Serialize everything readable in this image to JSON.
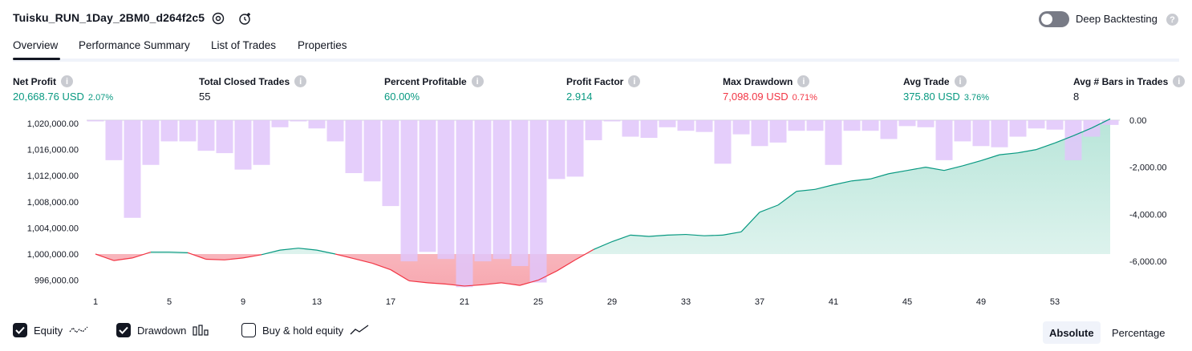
{
  "header": {
    "title": "Tuisku_RUN_1Day_2BM0_d264f2c5",
    "deep_backtesting_label": "Deep Backtesting",
    "deep_backtesting_enabled": false
  },
  "tabs": [
    {
      "label": "Overview",
      "active": true
    },
    {
      "label": "Performance Summary",
      "active": false
    },
    {
      "label": "List of Trades",
      "active": false
    },
    {
      "label": "Properties",
      "active": false
    }
  ],
  "metrics": [
    {
      "label": "Net Profit",
      "value": "20,668.76 USD",
      "pct": "2.07%",
      "color": "#089981"
    },
    {
      "label": "Total Closed Trades",
      "value": "55",
      "pct": "",
      "color": "#131722"
    },
    {
      "label": "Percent Profitable",
      "value": "60.00%",
      "pct": "",
      "color": "#089981"
    },
    {
      "label": "Profit Factor",
      "value": "2.914",
      "pct": "",
      "color": "#089981"
    },
    {
      "label": "Max Drawdown",
      "value": "7,098.09 USD",
      "pct": "0.71%",
      "color": "#f23645"
    },
    {
      "label": "Avg Trade",
      "value": "375.80 USD",
      "pct": "3.76%",
      "color": "#089981"
    },
    {
      "label": "Avg # Bars in Trades",
      "value": "8",
      "pct": "",
      "color": "#131722"
    }
  ],
  "colors": {
    "equity_line_up": "#089981",
    "equity_line_down": "#f23645",
    "drawdown_bar": "#e1c6fa",
    "equity_fill_up": "#cdeee6",
    "equity_fill_down": "#fbd5d8"
  },
  "chart_data": {
    "type": "bar",
    "x": [
      1,
      2,
      3,
      4,
      5,
      6,
      7,
      8,
      9,
      10,
      11,
      12,
      13,
      14,
      15,
      16,
      17,
      18,
      19,
      20,
      21,
      22,
      23,
      24,
      25,
      26,
      27,
      28,
      29,
      30,
      31,
      32,
      33,
      34,
      35,
      36,
      37,
      38,
      39,
      40,
      41,
      42,
      43,
      44,
      45,
      46,
      47,
      48,
      49,
      50,
      51,
      52,
      53,
      54,
      55,
      56
    ],
    "x_ticks": [
      "1",
      "5",
      "9",
      "13",
      "17",
      "21",
      "25",
      "29",
      "33",
      "37",
      "41",
      "45",
      "49",
      "53"
    ],
    "left_axis_ticks": [
      "1,020,000.00",
      "1,016,000.00",
      "1,012,000.00",
      "1,008,000.00",
      "1,004,000.00",
      "1,000,000.00",
      "996,000.00"
    ],
    "right_axis_ticks": [
      "0.00",
      "-2,000.00",
      "-4,000.00",
      "-6,000.00"
    ],
    "left_ylim": [
      994000,
      1021000
    ],
    "right_ylim": [
      -6500,
      0
    ],
    "series": [
      {
        "name": "Equity",
        "axis": "left",
        "values": [
          1000000,
          999000,
          999400,
          1000300,
          1000300,
          1000200,
          999200,
          999100,
          999400,
          999900,
          1000600,
          1000900,
          1000600,
          1000000,
          999300,
          998600,
          997600,
          995900,
          995600,
          995400,
          995100,
          995300,
          995600,
          995200,
          996000,
          997400,
          999100,
          1000700,
          1001900,
          1002900,
          1002700,
          1002900,
          1003000,
          1002800,
          1002900,
          1003400,
          1006400,
          1007500,
          1009600,
          1009900,
          1010600,
          1011200,
          1011500,
          1012300,
          1012800,
          1013300,
          1012800,
          1013500,
          1014300,
          1015200,
          1015500,
          1016000,
          1017000,
          1018100,
          1019300,
          1020700
        ]
      },
      {
        "name": "Drawdown",
        "axis": "right",
        "values": [
          -50,
          -1700,
          -4150,
          -1900,
          -900,
          -900,
          -1300,
          -1400,
          -2100,
          -1900,
          -300,
          -50,
          -350,
          -900,
          -2250,
          -2600,
          -3650,
          -6000,
          -5600,
          -5900,
          -7098,
          -6000,
          -5900,
          -6200,
          -6900,
          -2500,
          -2400,
          -850,
          -50,
          -700,
          -750,
          -300,
          -450,
          -500,
          -1850,
          -600,
          -1100,
          -950,
          -450,
          -450,
          -1900,
          -450,
          -450,
          -800,
          -250,
          -300,
          -1700,
          -900,
          -1100,
          -1150,
          -700,
          -350,
          -400,
          -1700,
          -700,
          -200
        ]
      }
    ]
  },
  "legend": [
    {
      "label": "Equity",
      "checked": true,
      "icon": "equity-wave-icon"
    },
    {
      "label": "Drawdown",
      "checked": true,
      "icon": "drawdown-bars-icon"
    },
    {
      "label": "Buy & hold equity",
      "checked": false,
      "icon": "buy-hold-line-icon"
    }
  ],
  "view_modes": [
    {
      "label": "Absolute",
      "active": true
    },
    {
      "label": "Percentage",
      "active": false
    }
  ]
}
